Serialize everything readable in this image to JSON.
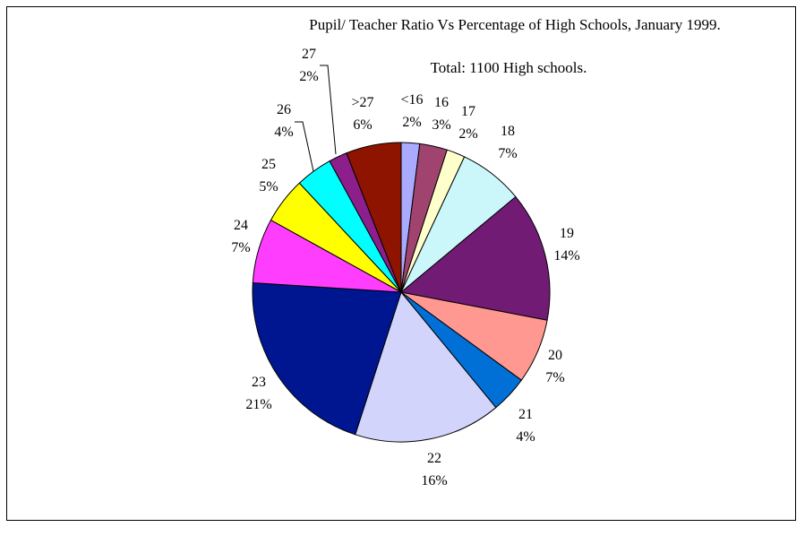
{
  "chart_data": {
    "type": "pie",
    "title": "Pupil/ Teacher Ratio Vs Percentage of High Schools, January 1999.",
    "subtitle": "Total: 1100 High schools.",
    "slices": [
      {
        "label": "<16",
        "pct_label": "2%",
        "value": 2,
        "color": "#aaaaff"
      },
      {
        "label": "16",
        "pct_label": "3%",
        "value": 3,
        "color": "#a0436e"
      },
      {
        "label": "17",
        "pct_label": "2%",
        "value": 2,
        "color": "#ffffcc"
      },
      {
        "label": "18",
        "pct_label": "7%",
        "value": 7,
        "color": "#ccf7fa"
      },
      {
        "label": "19",
        "pct_label": "14%",
        "value": 14,
        "color": "#721b75"
      },
      {
        "label": "20",
        "pct_label": "7%",
        "value": 7,
        "color": "#ff9890"
      },
      {
        "label": "21",
        "pct_label": "4%",
        "value": 4,
        "color": "#0070d6"
      },
      {
        "label": "22",
        "pct_label": "16%",
        "value": 16,
        "color": "#d2d4fb"
      },
      {
        "label": "23",
        "pct_label": "21%",
        "value": 21,
        "color": "#001690"
      },
      {
        "label": "24",
        "pct_label": "7%",
        "value": 7,
        "color": "#ff3dff"
      },
      {
        "label": "25",
        "pct_label": "5%",
        "value": 5,
        "color": "#ffff00"
      },
      {
        "label": "26",
        "pct_label": "4%",
        "value": 4,
        "color": "#00ffff"
      },
      {
        "label": "27",
        "pct_label": "2%",
        "value": 2,
        "color": "#8c1f8c"
      },
      {
        "label": ">27",
        "pct_label": "6%",
        "value": 6,
        "color": "#8f1400"
      }
    ]
  }
}
